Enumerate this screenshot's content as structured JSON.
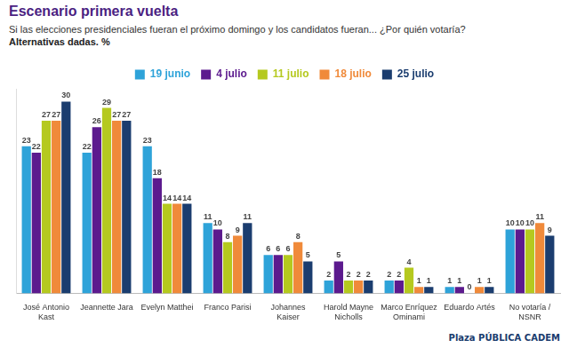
{
  "title": "Escenario primera vuelta",
  "subtitle": "Si las elecciones presidenciales fueran el próximo domingo y los candidatos fueran... ¿Por quién votaría?",
  "note": "Alternativas dadas. %",
  "source": "Plaza PÚBLICA CADEM",
  "chart_data": {
    "type": "bar",
    "categories": [
      "José Antonio Kast",
      "Jeannette Jara",
      "Evelyn Matthei",
      "Franco Parisi",
      "Johannes Kaiser",
      "Harold Mayne Nicholls",
      "Marco Enríquez Ominami",
      "Eduardo Artés",
      "No votaría / NSNR"
    ],
    "series": [
      {
        "name": "19 junio",
        "color": "#2ea3d9",
        "values": [
          23,
          22,
          23,
          11,
          6,
          2,
          2,
          1,
          10
        ]
      },
      {
        "name": "4 julio",
        "color": "#5c1a8e",
        "values": [
          22,
          26,
          18,
          10,
          6,
          5,
          2,
          1,
          10
        ]
      },
      {
        "name": "11 julio",
        "color": "#b5c91f",
        "values": [
          27,
          29,
          14,
          8,
          6,
          2,
          4,
          0,
          10
        ]
      },
      {
        "name": "18 julio",
        "color": "#f08a3a",
        "values": [
          27,
          27,
          14,
          9,
          8,
          2,
          1,
          1,
          11
        ]
      },
      {
        "name": "25 julio",
        "color": "#1b3d6f",
        "values": [
          30,
          27,
          14,
          11,
          5,
          2,
          1,
          1,
          9
        ]
      }
    ],
    "ylim": [
      0,
      32
    ],
    "grid": false,
    "legend": "top",
    "data_labels": true,
    "tick_labels": "x"
  }
}
